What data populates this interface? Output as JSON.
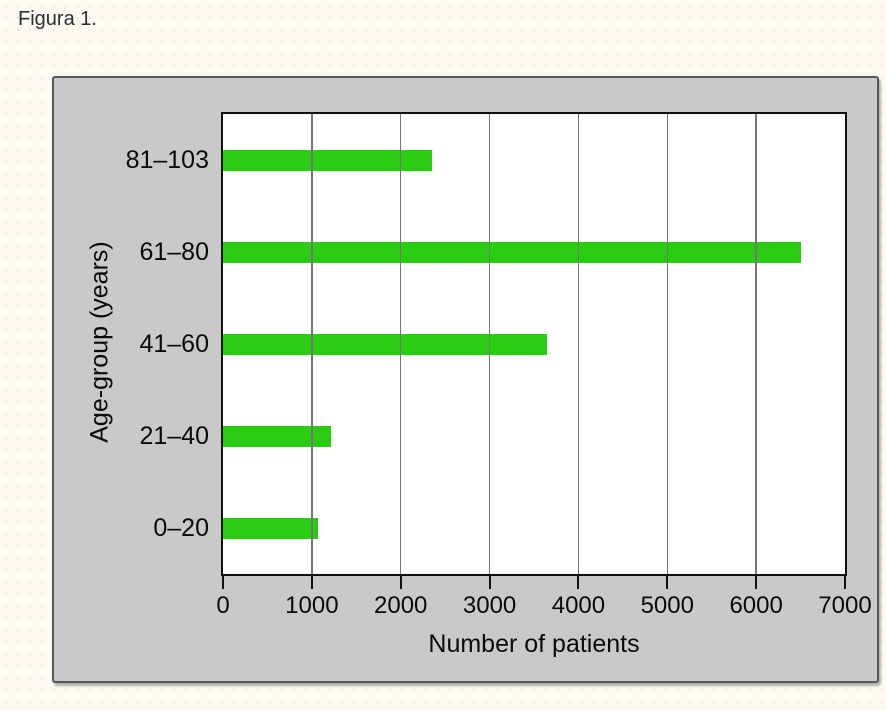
{
  "page": {
    "figure_label": "Figura 1."
  },
  "colors": {
    "page_bg": "#fdfaf1",
    "panel_bg": "#c9c9c9",
    "panel_border": "#55575a",
    "plot_bg": "#ffffff",
    "plot_frame": "#101010",
    "gridline": "#767676",
    "bar_fill": "#29cc10",
    "text": "#0a0a0a",
    "figure_label_text": "#2b2f36"
  },
  "chart_data": {
    "type": "bar",
    "orientation": "horizontal",
    "title": "",
    "xlabel": "Number of patients",
    "ylabel": "Age-group (years)",
    "categories": [
      "81–103",
      "61–80",
      "41–60",
      "21–40",
      "0–20"
    ],
    "values": [
      2350,
      6500,
      3650,
      1220,
      1070
    ],
    "xlim": [
      0,
      7000
    ],
    "xticks": [
      0,
      1000,
      2000,
      3000,
      4000,
      5000,
      6000,
      7000
    ],
    "grid": "vertical gridlines at each x tick, drawn over the bars",
    "legend": "none",
    "bar_color_name": "bright-green"
  }
}
